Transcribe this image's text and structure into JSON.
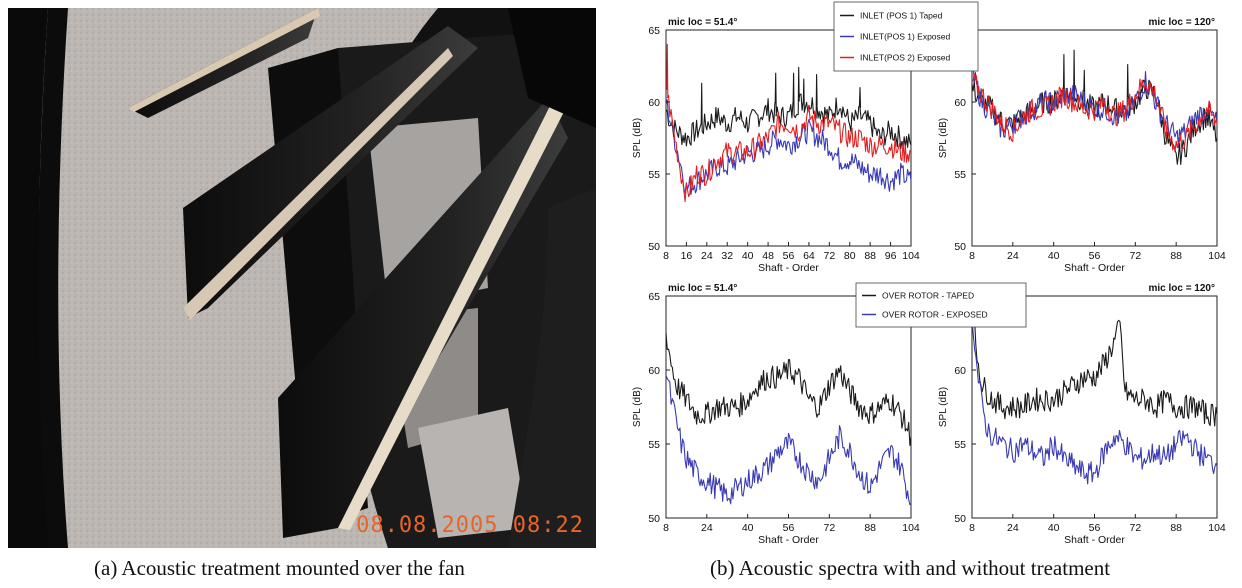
{
  "photo": {
    "timestamp": "08.08.2005  08:22",
    "caption": "(a) Acoustic treatment mounted over the fan"
  },
  "figure": {
    "caption": "(b) Acoustic spectra with and without treatment"
  },
  "colors": {
    "taped": "#1a1a1a",
    "exposed_blue": "#3a3ab4",
    "exposed_red": "#e02020"
  },
  "legends": {
    "inlet": [
      {
        "label": "INLET (POS 1) Taped",
        "color": "#1a1a1a"
      },
      {
        "label": "INLET(POS 1) Exposed",
        "color": "#3a3ab4"
      },
      {
        "label": "INLET(POS 2) Exposed",
        "color": "#e02020"
      }
    ],
    "rotor": [
      {
        "label": "OVER ROTOR - TAPED",
        "color": "#1a1a1a"
      },
      {
        "label": "OVER ROTOR - EXPOSED",
        "color": "#3a3ab4"
      }
    ]
  },
  "chart_data": [
    {
      "type": "line",
      "title": "mic loc = 51.4°",
      "xlabel": "Shaft - Order",
      "ylabel": "SPL (dB)",
      "xlim": [
        8,
        104
      ],
      "ylim": [
        50,
        65
      ],
      "xticks": [
        8,
        16,
        24,
        32,
        40,
        48,
        56,
        64,
        72,
        80,
        88,
        96,
        104
      ],
      "yticks": [
        50,
        55,
        60,
        65
      ],
      "series": [
        {
          "name": "INLET (POS 1) Taped",
          "color": "#1a1a1a",
          "x": [
            8,
            10,
            12,
            16,
            20,
            24,
            28,
            32,
            36,
            40,
            44,
            48,
            52,
            56,
            60,
            64,
            68,
            72,
            76,
            80,
            84,
            88,
            92,
            96,
            100,
            104
          ],
          "y": [
            59.5,
            58.5,
            58,
            57.5,
            58,
            58.5,
            59,
            58.5,
            59,
            58.5,
            59,
            59.5,
            59,
            59,
            60,
            60,
            59.5,
            59,
            60,
            58.5,
            59,
            58.5,
            57.5,
            58,
            57.5,
            57
          ],
          "peaks": [
            {
              "x": 22,
              "y": 61.3
            },
            {
              "x": 51,
              "y": 62
            },
            {
              "x": 58,
              "y": 62
            },
            {
              "x": 60,
              "y": 62.4
            },
            {
              "x": 62,
              "y": 61.6
            },
            {
              "x": 67,
              "y": 61.9
            },
            {
              "x": 84,
              "y": 61
            }
          ]
        },
        {
          "name": "INLET(POS 1) Exposed",
          "color": "#3a3ab4",
          "x": [
            8,
            10,
            12,
            14,
            16,
            20,
            24,
            28,
            32,
            36,
            40,
            44,
            48,
            52,
            56,
            60,
            64,
            68,
            72,
            76,
            80,
            84,
            88,
            92,
            96,
            100,
            104
          ],
          "y": [
            60,
            58.5,
            57,
            55.5,
            54,
            54.5,
            55,
            55.5,
            55.5,
            56,
            56.5,
            56.5,
            57,
            57.5,
            57,
            57.5,
            58,
            57.5,
            57,
            56,
            56,
            55.5,
            55,
            55,
            54.5,
            55,
            54.5
          ]
        },
        {
          "name": "INLET(POS 2) Exposed",
          "color": "#e02020",
          "x": [
            8,
            10,
            12,
            14,
            16,
            20,
            24,
            28,
            32,
            36,
            40,
            44,
            48,
            52,
            56,
            60,
            64,
            68,
            72,
            76,
            80,
            84,
            88,
            92,
            96,
            100,
            104
          ],
          "y": [
            61,
            59,
            57,
            55,
            53.5,
            55,
            55,
            56,
            56.5,
            56.5,
            56.5,
            57,
            57.5,
            58.5,
            58.5,
            58,
            59,
            58.5,
            58.5,
            58,
            57.5,
            57.5,
            57,
            57,
            57,
            56.5,
            56.5
          ],
          "peaks": [
            {
              "x": 8.5,
              "y": 64
            }
          ]
        }
      ]
    },
    {
      "type": "line",
      "title": "mic loc = 120°",
      "xlabel": "Shaft - Order",
      "ylabel": "SPL (dB)",
      "xlim": [
        8,
        104
      ],
      "ylim": [
        50,
        65
      ],
      "xticks": [
        8,
        24,
        40,
        56,
        72,
        88,
        104
      ],
      "yticks": [
        50,
        55,
        60
      ],
      "series": [
        {
          "name": "INLET (POS 1) Taped",
          "color": "#1a1a1a",
          "x": [
            8,
            12,
            16,
            20,
            24,
            28,
            32,
            36,
            40,
            44,
            48,
            52,
            56,
            60,
            64,
            68,
            72,
            76,
            80,
            84,
            88,
            92,
            96,
            100,
            104
          ],
          "y": [
            61,
            60,
            59.5,
            58.5,
            58.5,
            59,
            59.5,
            60,
            60,
            60.5,
            60.5,
            60,
            59.5,
            60,
            59.5,
            59.5,
            60,
            61,
            60.5,
            57.5,
            56,
            57,
            58.5,
            59,
            57.5
          ],
          "peaks": [
            {
              "x": 44,
              "y": 63.3
            },
            {
              "x": 48,
              "y": 63.6
            },
            {
              "x": 52,
              "y": 62.2
            },
            {
              "x": 69,
              "y": 62.6
            }
          ]
        },
        {
          "name": "INLET(POS 1) Exposed",
          "color": "#3a3ab4",
          "x": [
            8,
            12,
            16,
            20,
            24,
            28,
            32,
            36,
            40,
            44,
            48,
            52,
            56,
            60,
            64,
            68,
            72,
            76,
            80,
            84,
            88,
            92,
            96,
            100,
            104
          ],
          "y": [
            62,
            60,
            59,
            58,
            58.5,
            59,
            59.5,
            60,
            60,
            60.5,
            60.5,
            60,
            59.5,
            59.5,
            59,
            59,
            60,
            61.5,
            60,
            58.5,
            57.5,
            58,
            59,
            59.5,
            58.5
          ]
        },
        {
          "name": "INLET(POS 2) Exposed",
          "color": "#e02020",
          "x": [
            8,
            12,
            16,
            20,
            24,
            28,
            32,
            36,
            40,
            44,
            48,
            52,
            56,
            60,
            64,
            68,
            72,
            76,
            80,
            84,
            88,
            92,
            96,
            100,
            104
          ],
          "y": [
            61.5,
            60.5,
            59.5,
            58.5,
            58,
            59,
            59.5,
            59.5,
            60,
            60.5,
            60,
            59.5,
            59.5,
            60,
            59,
            59.5,
            60.5,
            61.5,
            60.5,
            58,
            57,
            57.5,
            58.5,
            59.5,
            58.5
          ]
        }
      ]
    },
    {
      "type": "line",
      "title": "mic loc = 51.4°",
      "xlabel": "Shaft - Order",
      "ylabel": "SPL (dB)",
      "xlim": [
        8,
        104
      ],
      "ylim": [
        50,
        65
      ],
      "xticks": [
        8,
        24,
        40,
        56,
        72,
        88,
        104
      ],
      "yticks": [
        50,
        55,
        60,
        65
      ],
      "series": [
        {
          "name": "OVER ROTOR - TAPED",
          "color": "#1a1a1a",
          "x": [
            8,
            10,
            12,
            16,
            20,
            24,
            28,
            32,
            36,
            40,
            44,
            48,
            52,
            56,
            60,
            64,
            68,
            72,
            76,
            80,
            84,
            88,
            92,
            96,
            100,
            104
          ],
          "y": [
            62.5,
            60.5,
            59,
            58,
            57,
            57,
            57.5,
            57.5,
            57.5,
            58,
            59,
            59.5,
            59.5,
            60,
            59.5,
            58,
            57.5,
            59,
            60,
            58.5,
            57.5,
            57,
            57.5,
            58,
            57,
            55.5
          ]
        },
        {
          "name": "OVER ROTOR - EXPOSED",
          "color": "#3a3ab4",
          "x": [
            8,
            10,
            12,
            14,
            16,
            20,
            24,
            28,
            32,
            36,
            40,
            44,
            48,
            52,
            56,
            60,
            64,
            68,
            72,
            76,
            80,
            84,
            88,
            92,
            96,
            100,
            104
          ],
          "y": [
            60,
            58,
            56.5,
            55,
            54,
            53,
            52.5,
            52,
            51.5,
            52,
            52.5,
            53,
            53.5,
            54.5,
            55,
            54,
            53,
            52.5,
            54,
            55.5,
            54.5,
            53,
            52,
            53.5,
            54.5,
            53.5,
            51
          ]
        }
      ]
    },
    {
      "type": "line",
      "title": "mic loc = 120°",
      "xlabel": "Shaft - Order",
      "ylabel": "SPL (dB)",
      "xlim": [
        8,
        104
      ],
      "ylim": [
        50,
        65
      ],
      "xticks": [
        8,
        24,
        40,
        56,
        72,
        88,
        104
      ],
      "yticks": [
        50,
        55,
        60
      ],
      "series": [
        {
          "name": "OVER ROTOR - TAPED",
          "color": "#1a1a1a",
          "x": [
            8,
            10,
            12,
            16,
            20,
            24,
            28,
            32,
            36,
            40,
            44,
            48,
            52,
            56,
            60,
            64,
            66,
            68,
            72,
            76,
            80,
            84,
            88,
            92,
            96,
            100,
            104
          ],
          "y": [
            64.5,
            61,
            59,
            58,
            57.5,
            57.5,
            57.5,
            58,
            58,
            58,
            58.5,
            59,
            59.5,
            59.5,
            60.5,
            62,
            63,
            58.5,
            58,
            58,
            57.5,
            58,
            57.5,
            57.5,
            57.5,
            57,
            57
          ]
        },
        {
          "name": "OVER ROTOR - EXPOSED",
          "color": "#3a3ab4",
          "x": [
            8,
            10,
            12,
            14,
            16,
            20,
            24,
            28,
            32,
            36,
            40,
            44,
            48,
            52,
            56,
            60,
            64,
            68,
            72,
            76,
            80,
            84,
            88,
            92,
            96,
            100,
            104
          ],
          "y": [
            64,
            60,
            57.5,
            56,
            55.5,
            55,
            54.5,
            55,
            54.5,
            54,
            55,
            54,
            53.5,
            53,
            53,
            54.5,
            55.5,
            55,
            54,
            54,
            54.5,
            54,
            55,
            55.5,
            54.5,
            54,
            53.5
          ]
        }
      ]
    }
  ]
}
